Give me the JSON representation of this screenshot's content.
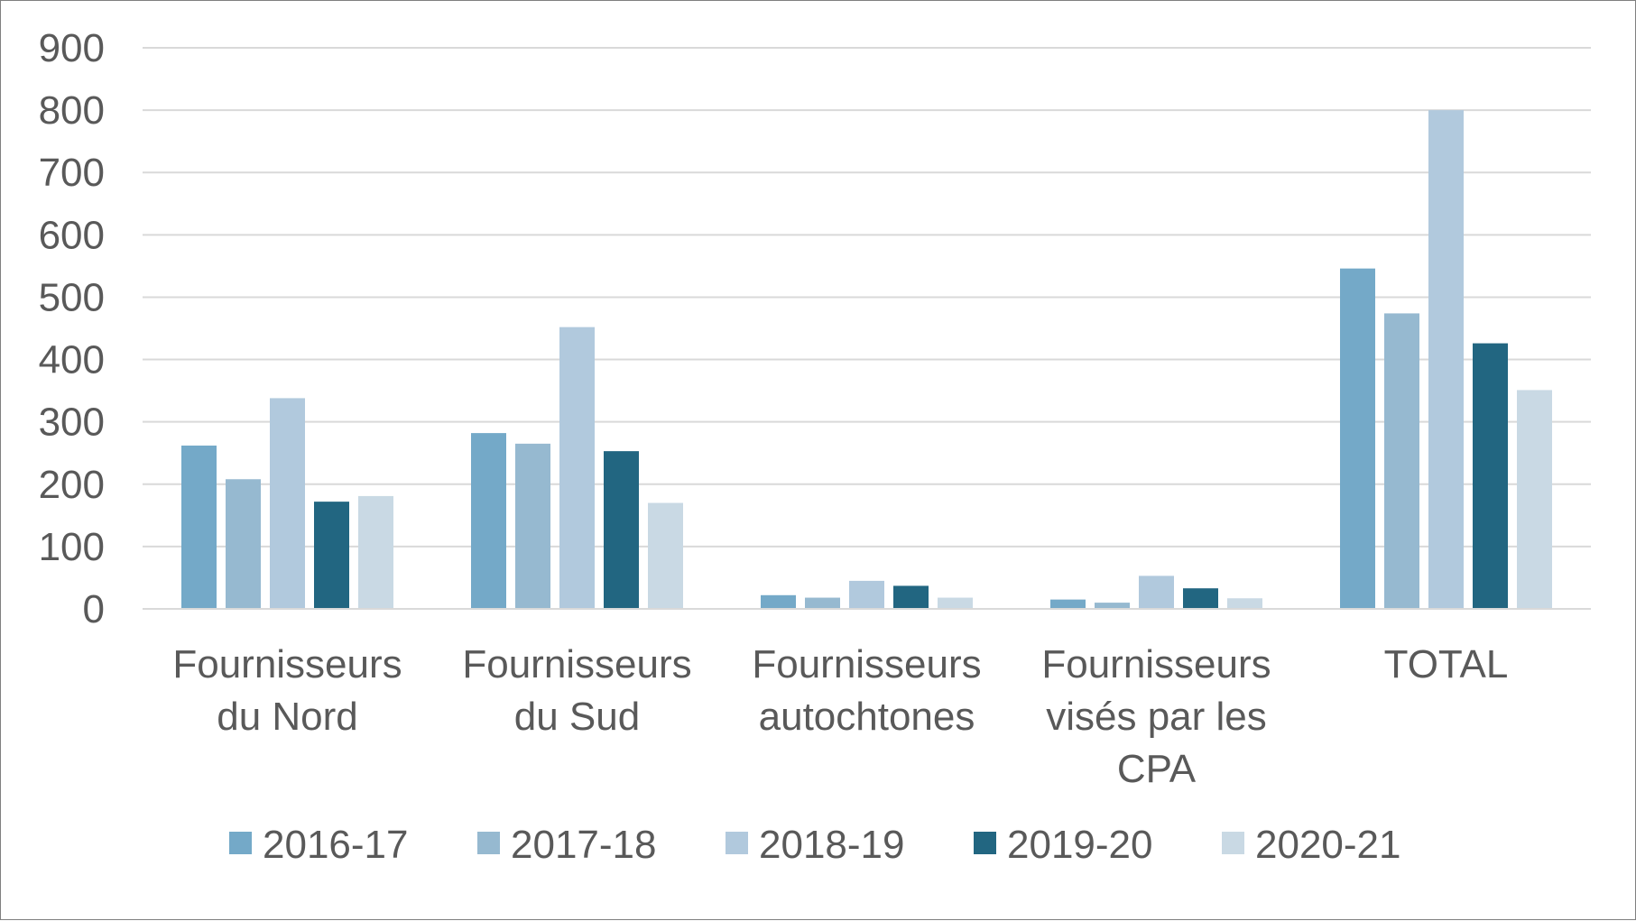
{
  "chart_data": {
    "type": "bar",
    "categories": [
      [
        "Fournisseurs",
        "du Nord"
      ],
      [
        "Fournisseurs",
        "du Sud"
      ],
      [
        "Fournisseurs",
        "autochtones"
      ],
      [
        "Fournisseurs",
        "visés par les",
        "CPA"
      ],
      [
        "TOTAL"
      ]
    ],
    "series": [
      {
        "name": "2016-17",
        "color": "#74a9c8",
        "values": [
          262,
          282,
          22,
          15,
          546
        ]
      },
      {
        "name": "2017-18",
        "color": "#96b9d0",
        "values": [
          208,
          265,
          18,
          10,
          474
        ]
      },
      {
        "name": "2018-19",
        "color": "#b1c9dd",
        "values": [
          338,
          452,
          45,
          53,
          800
        ]
      },
      {
        "name": "2019-20",
        "color": "#226681",
        "values": [
          172,
          253,
          37,
          33,
          426
        ]
      },
      {
        "name": "2020-21",
        "color": "#c9d9e4",
        "values": [
          181,
          170,
          18,
          17,
          351
        ]
      }
    ],
    "ylim": [
      0,
      900
    ],
    "yticks": [
      0,
      100,
      200,
      300,
      400,
      500,
      600,
      700,
      800,
      900
    ],
    "grid": true,
    "legend": "bottom",
    "title": "",
    "xlabel": "",
    "ylabel": ""
  }
}
